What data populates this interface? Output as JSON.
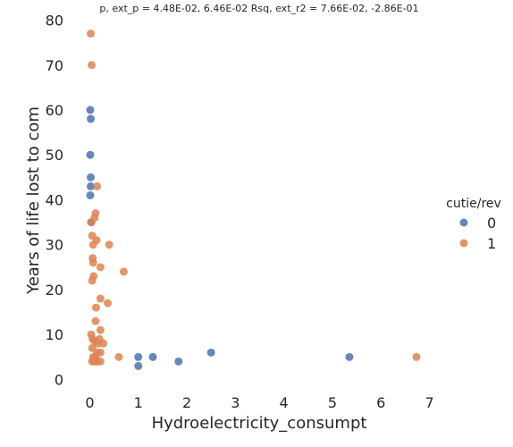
{
  "chart_data": {
    "type": "scatter",
    "title": "p, ext_p = 4.48E-02, 6.46E-02 Rsq, ext_r2 = 7.66E-02, -2.86E-01",
    "xlabel": "Hydroelectricity_consumpt",
    "ylabel": "Years of life lost to com",
    "xlim": [
      -0.45,
      7.45
    ],
    "ylim": [
      -1.5,
      80.5
    ],
    "xticks": [
      "0",
      "1",
      "2",
      "3",
      "4",
      "5",
      "6",
      "7"
    ],
    "yticks": [
      "0",
      "10",
      "20",
      "30",
      "40",
      "50",
      "60",
      "70",
      "80"
    ],
    "grid": false,
    "legend": {
      "title": "cutie/rev",
      "placement": "right"
    },
    "series": [
      {
        "name": "0",
        "color": "#4c72b0",
        "points": [
          [
            0.01,
            60
          ],
          [
            0.02,
            58
          ],
          [
            0.01,
            50
          ],
          [
            0.02,
            45
          ],
          [
            0.02,
            43
          ],
          [
            0.01,
            41
          ],
          [
            0.03,
            35
          ],
          [
            1.0,
            5
          ],
          [
            1.0,
            3
          ],
          [
            1.3,
            5
          ],
          [
            1.83,
            4
          ],
          [
            2.5,
            6
          ],
          [
            5.35,
            5
          ]
        ]
      },
      {
        "name": "1",
        "color": "#dd8452",
        "points": [
          [
            0.02,
            77
          ],
          [
            0.04,
            70
          ],
          [
            0.15,
            43
          ],
          [
            0.12,
            37
          ],
          [
            0.1,
            36
          ],
          [
            0.03,
            35
          ],
          [
            0.05,
            32
          ],
          [
            0.14,
            31
          ],
          [
            0.07,
            30
          ],
          [
            0.4,
            30
          ],
          [
            0.06,
            27
          ],
          [
            0.07,
            26
          ],
          [
            0.22,
            25
          ],
          [
            0.7,
            24
          ],
          [
            0.08,
            23
          ],
          [
            0.05,
            22
          ],
          [
            0.22,
            18
          ],
          [
            0.37,
            17
          ],
          [
            0.13,
            16
          ],
          [
            0.12,
            13
          ],
          [
            0.22,
            11
          ],
          [
            0.03,
            10
          ],
          [
            0.06,
            9
          ],
          [
            0.1,
            8.5
          ],
          [
            0.2,
            9
          ],
          [
            0.28,
            8
          ],
          [
            0.17,
            8
          ],
          [
            0.05,
            7
          ],
          [
            0.15,
            6
          ],
          [
            0.22,
            6
          ],
          [
            0.6,
            5
          ],
          [
            0.07,
            5
          ],
          [
            0.12,
            5
          ],
          [
            0.1,
            4.5
          ],
          [
            0.05,
            4
          ],
          [
            0.1,
            4
          ],
          [
            0.15,
            4
          ],
          [
            0.22,
            4
          ],
          [
            6.73,
            5
          ]
        ]
      }
    ]
  }
}
